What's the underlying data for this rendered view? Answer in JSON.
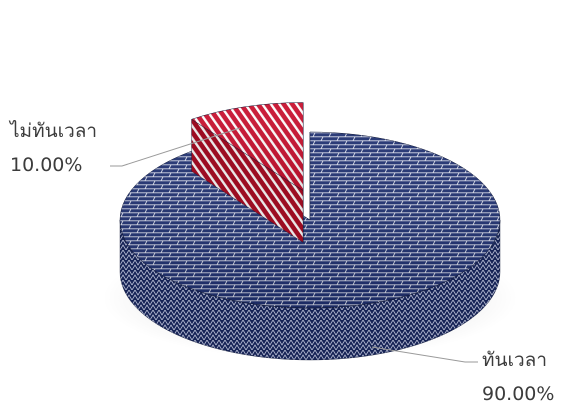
{
  "chart_data": {
    "type": "pie",
    "style": "3d-exploded",
    "slices": [
      {
        "label": "ทันเวลา",
        "value": 90.0,
        "value_label": "90.00%",
        "color": "#1f3070",
        "pattern": "brick-weave"
      },
      {
        "label": "ไม่ทันเวลา",
        "value": 10.0,
        "value_label": "10.00%",
        "color": "#c8102e",
        "pattern": "diagonal-stripes",
        "exploded": true
      }
    ],
    "legend": false
  }
}
